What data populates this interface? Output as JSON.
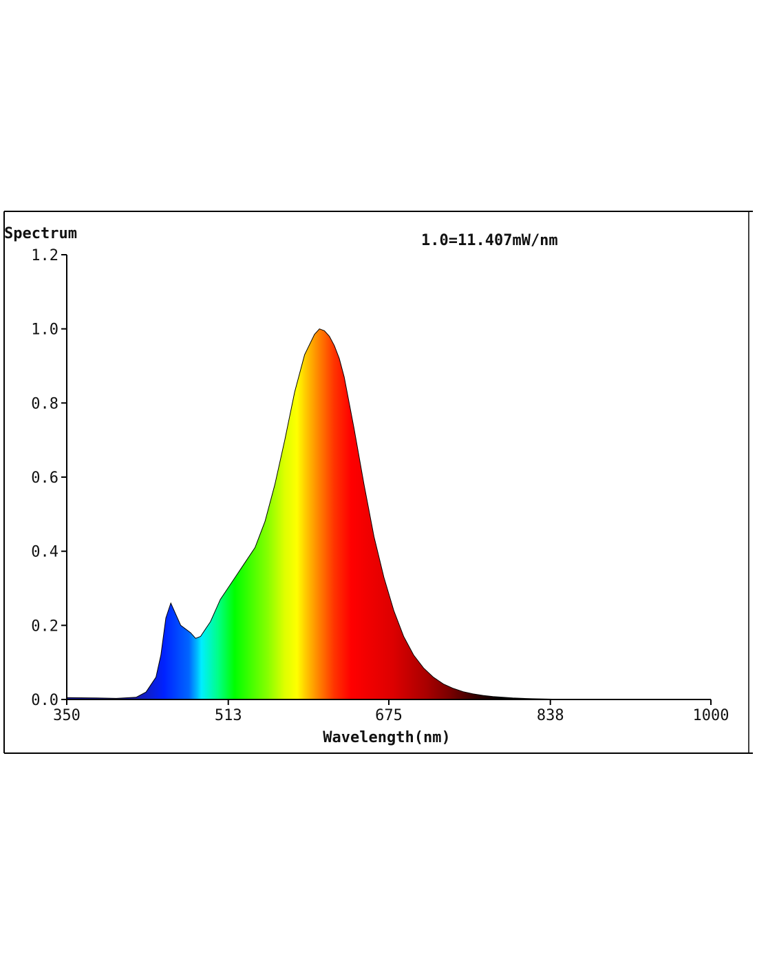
{
  "chart_data": {
    "type": "area",
    "title": "Spectrum",
    "annotation": "1.0=11.407mW/nm",
    "xlabel": "Wavelength(nm)",
    "ylabel": "",
    "xlim": [
      350,
      1000
    ],
    "ylim": [
      0,
      1.2
    ],
    "x_ticks": [
      350,
      513,
      675,
      838,
      1000
    ],
    "x_tick_labels": [
      "350",
      "513",
      "675",
      "838",
      "1000"
    ],
    "y_ticks": [
      0,
      0.2,
      0.4,
      0.6,
      0.8,
      1.0,
      1.2
    ],
    "y_tick_labels": [
      "0.0",
      "0.2",
      "0.4",
      "0.6",
      "0.8",
      "1.0",
      "1.2"
    ],
    "grid": false,
    "legend": "none",
    "fill": "visible-spectrum-gradient",
    "series": [
      {
        "x": [
          350,
          380,
          400,
          420,
          430,
          440,
          445,
          450,
          455,
          460,
          465,
          470,
          475,
          480,
          485,
          490,
          495,
          500,
          505,
          510,
          515,
          520,
          530,
          540,
          550,
          560,
          570,
          580,
          590,
          600,
          605,
          610,
          615,
          620,
          625,
          630,
          635,
          640,
          650,
          660,
          670,
          680,
          690,
          700,
          710,
          720,
          730,
          740,
          750,
          760,
          770,
          780,
          800,
          820,
          840,
          880,
          920,
          1000
        ],
        "y": [
          0.005,
          0.004,
          0.003,
          0.006,
          0.02,
          0.06,
          0.12,
          0.22,
          0.26,
          0.23,
          0.2,
          0.19,
          0.18,
          0.165,
          0.17,
          0.19,
          0.21,
          0.24,
          0.27,
          0.29,
          0.31,
          0.33,
          0.37,
          0.41,
          0.48,
          0.58,
          0.7,
          0.83,
          0.93,
          0.985,
          1.0,
          0.995,
          0.98,
          0.955,
          0.92,
          0.87,
          0.8,
          0.73,
          0.58,
          0.44,
          0.33,
          0.24,
          0.17,
          0.12,
          0.085,
          0.06,
          0.042,
          0.03,
          0.021,
          0.015,
          0.011,
          0.008,
          0.004,
          0.002,
          0.001,
          0.0005,
          0.0002,
          0.0
        ]
      }
    ]
  }
}
